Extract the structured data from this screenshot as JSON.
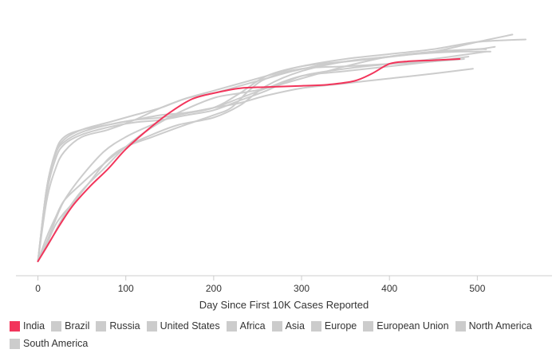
{
  "chart_data": {
    "type": "line",
    "title": "",
    "xlabel": "Day Since First 10K Cases Reported",
    "ylabel": "",
    "xlim": [
      -25,
      585
    ],
    "xticks": [
      0,
      100,
      200,
      300,
      400,
      500
    ],
    "ylim": [
      0,
      1
    ],
    "grid": false,
    "legend_position": "bottom",
    "highlight_color": "#f2355b",
    "muted_color": "#cccccc",
    "series": [
      {
        "name": "India",
        "color": "#f2355b",
        "x": [
          0,
          10,
          25,
          40,
          60,
          80,
          100,
          125,
          150,
          175,
          200,
          230,
          260,
          300,
          330,
          360,
          380,
          400,
          420,
          450,
          480
        ],
        "y": [
          0,
          0.06,
          0.15,
          0.23,
          0.31,
          0.38,
          0.46,
          0.54,
          0.61,
          0.665,
          0.69,
          0.71,
          0.715,
          0.72,
          0.725,
          0.74,
          0.77,
          0.81,
          0.82,
          0.825,
          0.83
        ]
      },
      {
        "name": "Brazil",
        "color": "#cccccc",
        "x": [
          0,
          10,
          20,
          30,
          50,
          75,
          100,
          130,
          160,
          200,
          230,
          260,
          300,
          350,
          400,
          450,
          500,
          540
        ],
        "y": [
          0,
          0.08,
          0.17,
          0.25,
          0.35,
          0.45,
          0.51,
          0.56,
          0.6,
          0.63,
          0.69,
          0.76,
          0.8,
          0.82,
          0.84,
          0.86,
          0.9,
          0.93
        ]
      },
      {
        "name": "Russia",
        "color": "#cccccc",
        "x": [
          0,
          10,
          20,
          30,
          40,
          60,
          80,
          100,
          130,
          160,
          200,
          220,
          240,
          260,
          300,
          350,
          400,
          450,
          485
        ],
        "y": [
          0,
          0.07,
          0.15,
          0.2,
          0.24,
          0.33,
          0.42,
          0.47,
          0.51,
          0.55,
          0.6,
          0.63,
          0.7,
          0.75,
          0.79,
          0.8,
          0.81,
          0.82,
          0.83
        ]
      },
      {
        "name": "United States",
        "color": "#cccccc",
        "x": [
          0,
          10,
          20,
          30,
          50,
          80,
          110,
          140,
          170,
          200,
          230,
          260,
          290,
          330,
          380,
          430,
          480,
          515
        ],
        "y": [
          0,
          0.3,
          0.44,
          0.5,
          0.54,
          0.57,
          0.6,
          0.63,
          0.67,
          0.69,
          0.72,
          0.75,
          0.78,
          0.81,
          0.83,
          0.85,
          0.86,
          0.86
        ]
      },
      {
        "name": "Africa",
        "color": "#cccccc",
        "x": [
          0,
          10,
          20,
          30,
          50,
          75,
          100,
          130,
          160,
          200,
          230,
          260,
          300,
          350,
          400,
          450,
          500,
          510
        ],
        "y": [
          0,
          0.1,
          0.18,
          0.25,
          0.32,
          0.4,
          0.47,
          0.52,
          0.56,
          0.59,
          0.64,
          0.72,
          0.78,
          0.82,
          0.84,
          0.86,
          0.87,
          0.87
        ]
      },
      {
        "name": "Asia",
        "color": "#cccccc",
        "x": [
          0,
          10,
          20,
          30,
          50,
          80,
          110,
          140,
          170,
          200,
          230,
          260,
          300,
          350,
          400,
          450,
          495
        ],
        "y": [
          0,
          0.3,
          0.45,
          0.51,
          0.54,
          0.56,
          0.58,
          0.6,
          0.61,
          0.63,
          0.65,
          0.68,
          0.71,
          0.73,
          0.75,
          0.77,
          0.79
        ]
      },
      {
        "name": "Europe",
        "color": "#cccccc",
        "x": [
          0,
          10,
          20,
          30,
          50,
          80,
          110,
          140,
          170,
          200,
          230,
          260,
          300,
          350,
          400,
          450,
          490
        ],
        "y": [
          0,
          0.3,
          0.44,
          0.49,
          0.53,
          0.56,
          0.58,
          0.59,
          0.61,
          0.63,
          0.67,
          0.71,
          0.76,
          0.78,
          0.8,
          0.82,
          0.84
        ]
      },
      {
        "name": "European Union",
        "color": "#cccccc",
        "x": [
          0,
          10,
          20,
          30,
          50,
          80,
          110,
          140,
          170,
          200,
          230,
          260,
          300,
          350,
          400,
          450,
          510
        ],
        "y": [
          0,
          0.28,
          0.42,
          0.48,
          0.52,
          0.55,
          0.57,
          0.58,
          0.6,
          0.62,
          0.66,
          0.7,
          0.76,
          0.79,
          0.81,
          0.83,
          0.86
        ]
      },
      {
        "name": "North America",
        "color": "#cccccc",
        "x": [
          0,
          10,
          20,
          30,
          50,
          80,
          110,
          140,
          170,
          200,
          230,
          260,
          300,
          350,
          400,
          450,
          500,
          555
        ],
        "y": [
          0,
          0.25,
          0.38,
          0.45,
          0.51,
          0.54,
          0.58,
          0.63,
          0.67,
          0.7,
          0.73,
          0.76,
          0.8,
          0.83,
          0.85,
          0.87,
          0.9,
          0.91
        ]
      },
      {
        "name": "South America",
        "color": "#cccccc",
        "x": [
          0,
          15,
          30,
          50,
          75,
          100,
          130,
          160,
          200,
          230,
          260,
          300,
          350,
          400,
          450,
          500,
          520
        ],
        "y": [
          0,
          0.09,
          0.19,
          0.29,
          0.38,
          0.47,
          0.55,
          0.61,
          0.67,
          0.69,
          0.71,
          0.75,
          0.8,
          0.84,
          0.86,
          0.87,
          0.88
        ]
      }
    ]
  }
}
